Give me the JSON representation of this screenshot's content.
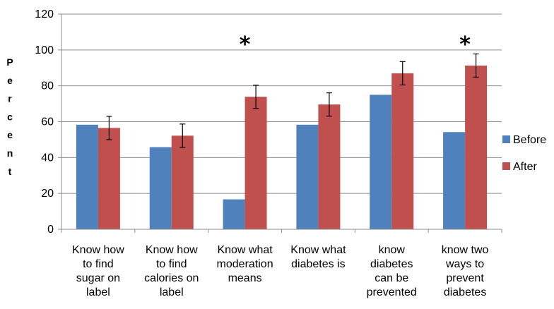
{
  "chart_data": {
    "type": "bar",
    "categories": [
      "Know how to find sugar on label",
      "Know how to find calories on label",
      "Know what moderation means",
      "Know what diabetes is",
      "know diabetes can be prevented",
      "know two ways to prevent diabetes"
    ],
    "category_lines": [
      [
        "Know how",
        "to find",
        "sugar on",
        "label"
      ],
      [
        "Know how",
        "to find",
        "calories on",
        "label"
      ],
      [
        "Know what",
        "moderation",
        "means"
      ],
      [
        "Know what",
        "diabetes is"
      ],
      [
        "know",
        "diabetes",
        "can be",
        "prevented"
      ],
      [
        "know two",
        "ways to",
        "prevent",
        "diabetes"
      ]
    ],
    "series": [
      {
        "name": "Before",
        "color": "#4F81BD",
        "values": [
          58.3,
          45.8,
          16.7,
          58.3,
          75.0,
          54.2
        ]
      },
      {
        "name": "After",
        "color": "#C0504D",
        "values": [
          56.5,
          52.2,
          73.9,
          69.6,
          87.0,
          91.3
        ],
        "error": [
          6.5,
          6.5,
          6.5,
          6.5,
          6.5,
          6.5
        ]
      }
    ],
    "significance": [
      {
        "category_index": 2,
        "mark": "*"
      },
      {
        "category_index": 5,
        "mark": "*"
      }
    ],
    "xlabel": "",
    "ylabel": "Percent",
    "ylim": [
      0,
      120
    ],
    "yticks": [
      "0",
      "20",
      "40",
      "60",
      "80",
      "100",
      "120"
    ],
    "grid": true,
    "legend_position": "right"
  }
}
